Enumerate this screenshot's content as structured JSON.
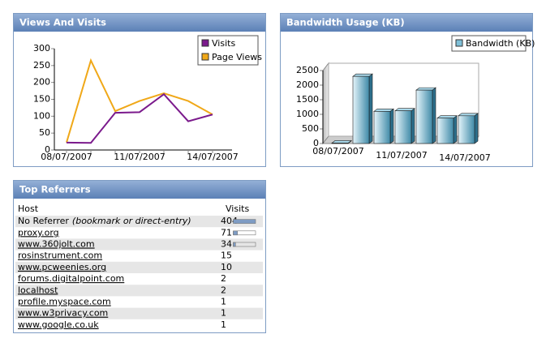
{
  "chart_data": [
    {
      "type": "line",
      "title": "Views And Visits",
      "categories": [
        "08/07/2007",
        null,
        null,
        "11/07/2007",
        null,
        null,
        "14/07/2007"
      ],
      "series": [
        {
          "name": "Visits",
          "color": "#7b1a8c",
          "values": [
            22,
            21,
            110,
            112,
            165,
            85,
            105
          ]
        },
        {
          "name": "Page Views",
          "color": "#f0a818",
          "values": [
            22,
            265,
            115,
            145,
            168,
            145,
            105
          ]
        }
      ],
      "ylim": [
        0,
        300
      ],
      "yticks": [
        0,
        50,
        100,
        150,
        200,
        250,
        300
      ],
      "legend": "top-right"
    },
    {
      "type": "bar3d",
      "title": "Bandwidth Usage (KB)",
      "categories": [
        "08/07/2007",
        null,
        null,
        "11/07/2007",
        null,
        null,
        "14/07/2007"
      ],
      "series": [
        {
          "name": "Bandwidth (KB)",
          "color": "#7fc0d8",
          "values": [
            15,
            2300,
            1100,
            1120,
            1830,
            870,
            950
          ]
        }
      ],
      "ylim": [
        0,
        2500
      ],
      "yticks": [
        0,
        500,
        1000,
        1500,
        2000,
        2500
      ],
      "legend": "top-right"
    }
  ],
  "referrers": {
    "title": "Top Referrers",
    "columns": [
      "Host",
      "Visits"
    ],
    "rows": [
      {
        "host": "No Referrer",
        "note": "(bookmark or direct-entry)",
        "visits": 404
      },
      {
        "host": "proxy.org",
        "visits": 71,
        "color": "#1a4b9c"
      },
      {
        "host": "www.360jolt.com",
        "visits": 34,
        "color": "#1a4b9c"
      },
      {
        "host": "rosinstrument.com",
        "visits": 15,
        "color": "#1a4b9c"
      },
      {
        "host": "www.pcweenies.org",
        "visits": 10,
        "color": "#1a4b9c"
      },
      {
        "host": "forums.digitalpoint.com",
        "visits": 2,
        "color": "#cc0000"
      },
      {
        "host": "localhost",
        "visits": 2,
        "color": "#1a4b9c"
      },
      {
        "host": "profile.myspace.com",
        "visits": 1,
        "color": "#1a4b9c"
      },
      {
        "host": "www.w3privacy.com",
        "visits": 1,
        "color": "#1a4b9c"
      },
      {
        "host": "www.google.co.uk",
        "visits": 1,
        "color": "#1a4b9c"
      }
    ]
  }
}
